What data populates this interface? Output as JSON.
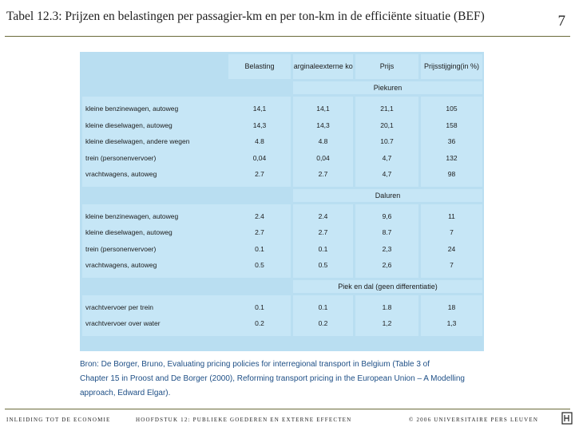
{
  "slide": {
    "title": "Tabel 12.3: Prijzen en belastingen per passagier-km en per ton-km in de efficiënte situatie (BEF)",
    "number": "7"
  },
  "table": {
    "headers": [
      {
        "lines": [
          "Belasting"
        ]
      },
      {
        "lines": [
          "Marginale",
          "externe kost"
        ]
      },
      {
        "lines": [
          "Prijs"
        ]
      },
      {
        "lines": [
          "Prijsstijging",
          "(in %)"
        ]
      }
    ],
    "sections": [
      {
        "title": "Piekuren",
        "rows": [
          {
            "label": "kleine benzinewagen, autoweg",
            "values": [
              "14,1",
              "14,1",
              "21,1",
              "105"
            ]
          },
          {
            "label": "kleine dieselwagen, autoweg",
            "values": [
              "14,3",
              "14,3",
              "20,1",
              "158"
            ]
          },
          {
            "label": "kleine dieselwagen, andere wegen",
            "values": [
              "4.8",
              "4.8",
              "10.7",
              "36"
            ]
          },
          {
            "label": "trein (personenvervoer)",
            "values": [
              "0,04",
              "0,04",
              "4,7",
              "132"
            ]
          },
          {
            "label": "vrachtwagens, autoweg",
            "values": [
              "2.7",
              "2.7",
              "4,7",
              "98"
            ]
          }
        ]
      },
      {
        "title": "Daluren",
        "rows": [
          {
            "label": "kleine benzinewagen, autoweg",
            "values": [
              "2.4",
              "2.4",
              "9,6",
              "11"
            ]
          },
          {
            "label": "kleine dieselwagen, autoweg",
            "values": [
              "2.7",
              "2.7",
              "8.7",
              "7"
            ]
          },
          {
            "label": "trein (personenvervoer)",
            "values": [
              "0.1",
              "0.1",
              "2,3",
              "24"
            ]
          },
          {
            "label": "vrachtwagens, autoweg",
            "values": [
              "0.5",
              "0.5",
              "2,6",
              "7"
            ]
          }
        ]
      },
      {
        "title": "Piek en dal (geen differentiatie)",
        "rows": [
          {
            "label": "vrachtvervoer per trein",
            "values": [
              "0.1",
              "0.1",
              "1.8",
              "18"
            ]
          },
          {
            "label": "vrachtvervoer over water",
            "values": [
              "0.2",
              "0.2",
              "1,2",
              "1,3"
            ]
          }
        ]
      }
    ]
  },
  "source": {
    "lines": [
      "Bron: De Borger, Bruno, Evaluating pricing policies for interregional transport in Belgium (Table 3 of",
      "Chapter 15 in Proost and De Borger (2000), Reforming transport pricing in the European Union – A Modelling",
      "approach, Edward Elgar)."
    ]
  },
  "footer": {
    "left": "INLEIDING TOT DE ECONOMIE",
    "middle": "HOOFDSTUK 12: PUBLIEKE GOEDEREN EN EXTERNE EFFECTEN",
    "right": "© 2006 UNIVERSITAIRE PERS LEUVEN"
  },
  "colors": {
    "panel": "#b9def1",
    "cell": "#c6e6f6",
    "source_text": "#1e4f86",
    "rule": "#6a6a3a"
  }
}
